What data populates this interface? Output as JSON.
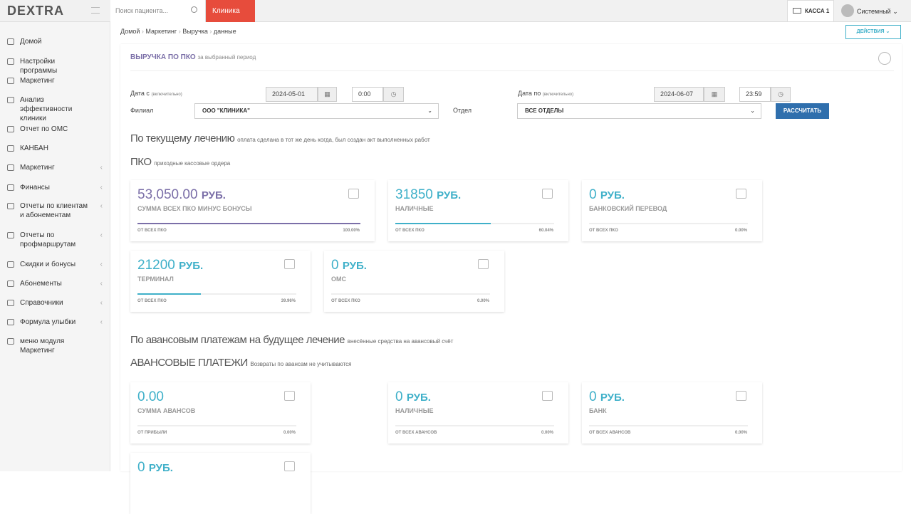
{
  "header": {
    "logo": "DEXTRA",
    "search_placeholder": "Поиск пациента...",
    "clinic": "Клиника",
    "cash_desk": "КАССА 1",
    "user": "Системный"
  },
  "sidebar": {
    "items": [
      {
        "label": "Домой",
        "submenu": false
      },
      {
        "label": "Настройки программы",
        "submenu": false
      },
      {
        "label": "Маркетинг",
        "submenu": false
      },
      {
        "label": "Анализ эффективности клиники",
        "submenu": false
      },
      {
        "label": "Отчет по ОМС",
        "submenu": false
      },
      {
        "label": "КАНБАН",
        "submenu": false
      },
      {
        "label": "Маркетинг",
        "submenu": true
      },
      {
        "label": "Финансы",
        "submenu": true
      },
      {
        "label": "Отчеты по клиентам и абонементам",
        "submenu": true
      },
      {
        "label": "Отчеты по профмаршрутам",
        "submenu": true
      },
      {
        "label": "Скидки и бонусы",
        "submenu": true
      },
      {
        "label": "Абонементы",
        "submenu": true
      },
      {
        "label": "Справочники",
        "submenu": true
      },
      {
        "label": "Формула улыбки",
        "submenu": true
      },
      {
        "label": "меню модуля Маркетинг",
        "submenu": false
      }
    ]
  },
  "breadcrumb": [
    "Домой",
    "Маркетинг",
    "Выручка",
    "данные"
  ],
  "actions": "ДЕЙСТВИЯ",
  "panel": {
    "title": "ВЫРУЧКА ПО ПКО",
    "subtitle": "за выбранный период"
  },
  "form": {
    "date_from": {
      "label": "Дата с",
      "hint": "(включительно)",
      "date": "2024-05-01",
      "time": "0:00"
    },
    "date_to": {
      "label": "Дата по",
      "hint": "(включительно)",
      "date": "2024-06-07",
      "time": "23:59"
    },
    "branch": {
      "label": "Филиал",
      "value": "ООО \"КЛИНИКА\""
    },
    "department": {
      "label": "Отдел",
      "value": "ВСЕ ОТДЕЛЫ"
    },
    "button": "РАССЧИТАТЬ"
  },
  "sections": [
    {
      "heading": "По текущему лечению",
      "heading_note": "оплата сделана в тот же день когда, был создан акт выполненных работ",
      "subheading": "ПКО",
      "subheading_note": "приходные кассовые ордера",
      "cards": [
        {
          "amount": "53,050.00",
          "currency": "РУБ.",
          "label": "СУММА ВСЕХ ПКО МИНУС БОНУСЫ",
          "base": "ОТ ВСЕХ ПКО",
          "share": 100,
          "share_label": "100.00%",
          "color": "#7b6fa8"
        },
        {
          "amount": "31850",
          "currency": "РУБ.",
          "label": "НАЛИЧНЫЕ",
          "base": "ОТ ВСЕХ ПКО",
          "share": 60.04,
          "share_label": "60.04%",
          "color": "#3fb0c9"
        },
        {
          "amount": "0",
          "currency": "РУБ.",
          "label": "БАНКОВСКИЙ ПЕРЕВОД",
          "base": "ОТ ВСЕХ ПКО",
          "share": 0,
          "share_label": "0.00%",
          "color": "#3fb0c9"
        },
        {
          "amount": "21200",
          "currency": "РУБ.",
          "label": "ТЕРМИНАЛ",
          "base": "ОТ ВСЕХ ПКО",
          "share": 39.96,
          "share_label": "39.96%",
          "color": "#3fb0c9"
        },
        {
          "amount": "0",
          "currency": "РУБ.",
          "label": "ОМС",
          "base": "ОТ ВСЕХ ПКО",
          "share": 0,
          "share_label": "0.00%",
          "color": "#3fb0c9"
        }
      ]
    },
    {
      "heading": "По авансовым платежам на будущее лечение",
      "heading_note": "внесённые средства на авансовый счёт",
      "subheading": "АВАНСОВЫЕ ПЛАТЕЖИ",
      "subheading_note": "Возвраты по авансам не учитываются",
      "cards": [
        {
          "amount": "0.00",
          "label": "СУММА АВАНСОВ",
          "base": "ОТ ПРИБЫЛИ",
          "share": 0,
          "share_label": "0.00%",
          "color": "#3fb0c9"
        },
        {
          "amount": "0",
          "currency": "РУБ.",
          "label": "НАЛИЧНЫЕ",
          "base": "ОТ ВСЕХ АВАНСОВ",
          "share": 0,
          "share_label": "0.00%",
          "color": "#3fb0c9"
        },
        {
          "amount": "0",
          "currency": "РУБ.",
          "label": "БАНК",
          "base": "ОТ ВСЕХ АВАНСОВ",
          "share": 0,
          "share_label": "0.00%",
          "color": "#3fb0c9"
        },
        {
          "amount": "0",
          "currency": "РУБ.",
          "color": "#3fb0c9"
        }
      ]
    }
  ]
}
